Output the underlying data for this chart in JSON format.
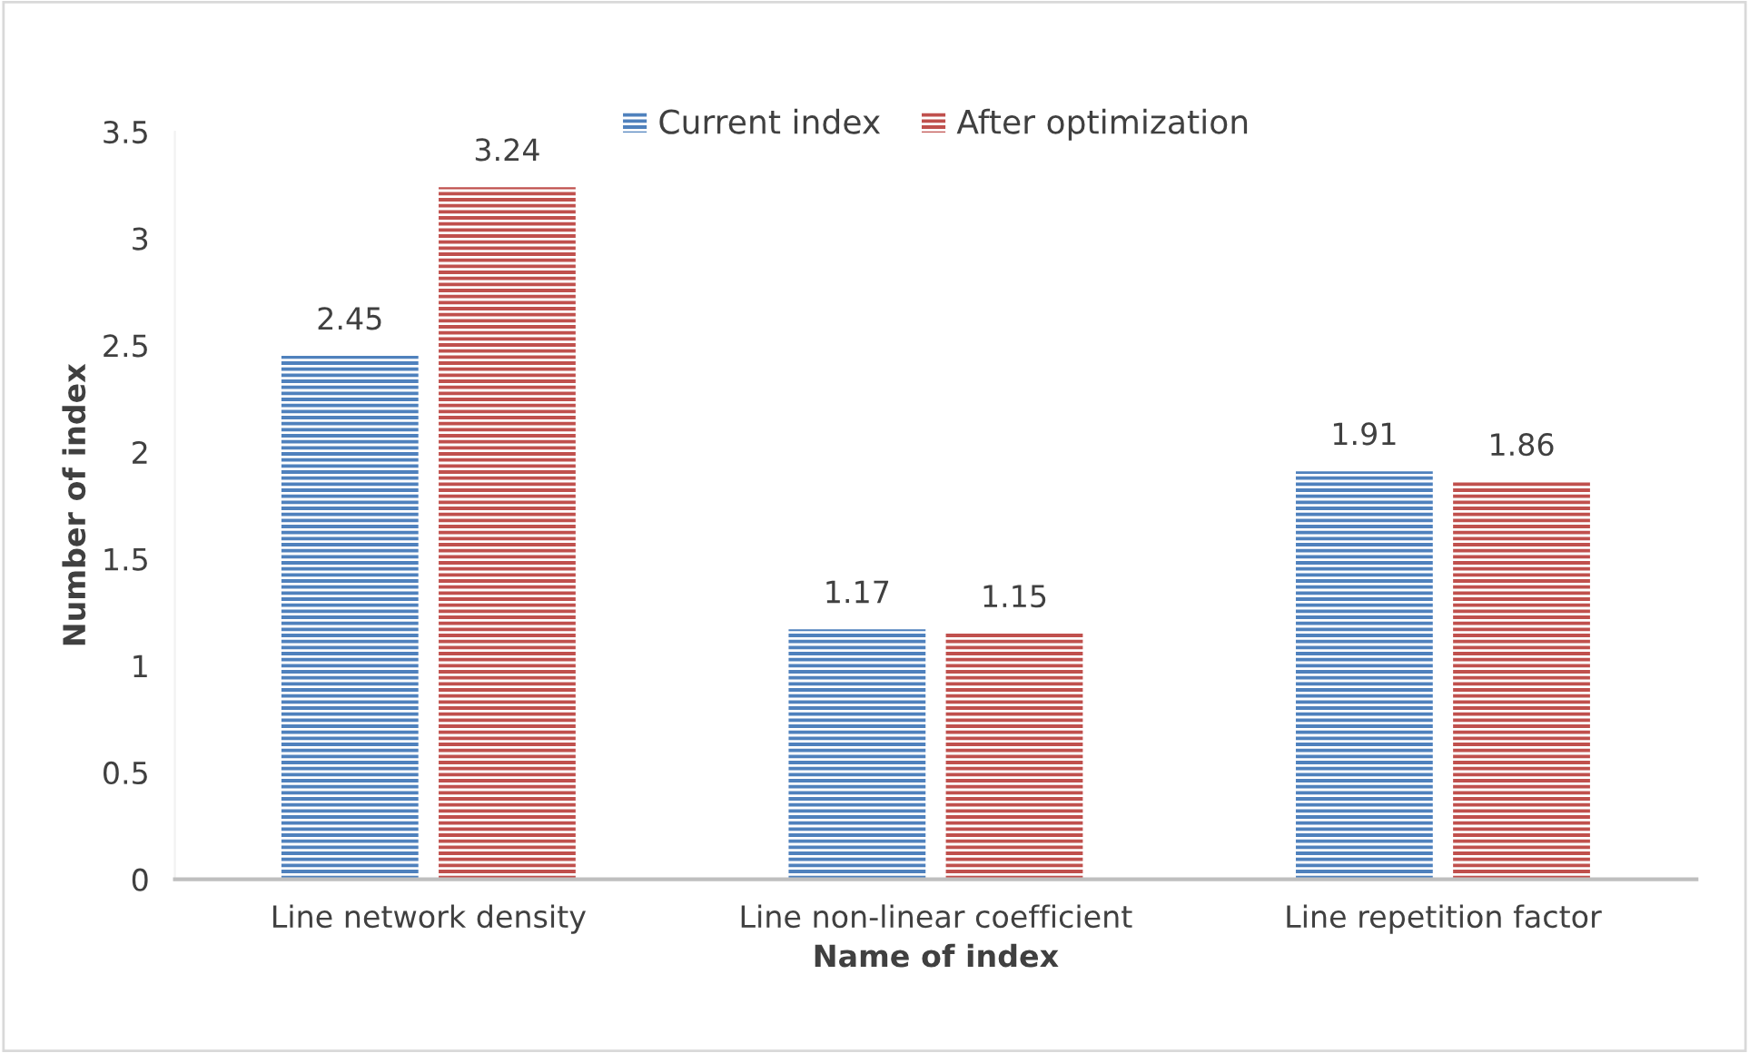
{
  "chart_data": {
    "type": "bar",
    "xlabel": "Name of index",
    "ylabel": "Number of index",
    "categories": [
      "Line network density",
      "Line non-linear coefficient",
      "Line repetition factor"
    ],
    "series": [
      {
        "name": "Current index",
        "color": "#4f81bd",
        "values": [
          2.45,
          1.17,
          1.91
        ]
      },
      {
        "name": "After optimization",
        "color": "#c0504d",
        "values": [
          3.24,
          1.15,
          1.86
        ]
      }
    ],
    "ylim": [
      0,
      3.5
    ],
    "yticks": [
      0,
      0.5,
      1,
      1.5,
      2,
      2.5,
      3,
      3.5
    ],
    "grid": false,
    "legend": "top",
    "data_labels": true
  }
}
